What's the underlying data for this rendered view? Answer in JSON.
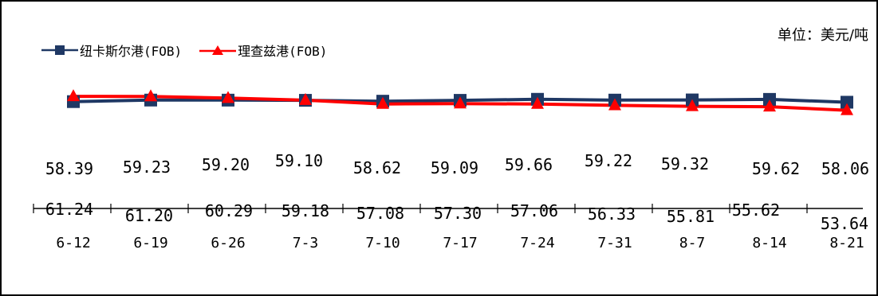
{
  "unit_label": "单位：美元/吨",
  "legend": [
    {
      "name": "纽卡斯尔港(FOB)",
      "color": "#1f3864",
      "marker": "square"
    },
    {
      "name": "理查兹港(FOB)",
      "color": "#ff0000",
      "marker": "triangle"
    }
  ],
  "chart_data": {
    "type": "line",
    "categories": [
      "6-12",
      "6-19",
      "6-26",
      "7-3",
      "7-10",
      "7-17",
      "7-24",
      "7-31",
      "8-7",
      "8-14",
      "8-21"
    ],
    "series": [
      {
        "name": "纽卡斯尔港(FOB)",
        "color": "#1f3864",
        "values": [
          58.39,
          59.23,
          59.2,
          59.1,
          58.62,
          59.09,
          59.66,
          59.22,
          59.32,
          59.62,
          58.06
        ]
      },
      {
        "name": "理查兹港(FOB)",
        "color": "#ff0000",
        "values": [
          61.24,
          61.2,
          60.29,
          59.18,
          57.08,
          57.3,
          57.06,
          56.33,
          55.81,
          55.62,
          53.64
        ]
      }
    ],
    "legend_position": "top-left",
    "grid": false
  }
}
